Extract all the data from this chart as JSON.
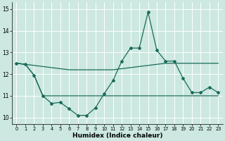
{
  "xlabel": "Humidex (Indice chaleur)",
  "bg_color": "#cce8e0",
  "line_color": "#1a6b5a",
  "grid_color": "#ffffff",
  "xlim": [
    -0.5,
    23.5
  ],
  "ylim": [
    9.7,
    15.3
  ],
  "yticks": [
    10,
    11,
    12,
    13,
    14,
    15
  ],
  "xticks": [
    0,
    1,
    2,
    3,
    4,
    5,
    6,
    7,
    8,
    9,
    10,
    11,
    12,
    13,
    14,
    15,
    16,
    17,
    18,
    19,
    20,
    21,
    22,
    23
  ],
  "line1_x": [
    0,
    1,
    2,
    3,
    4,
    5,
    6,
    7,
    8,
    9,
    10,
    11,
    12,
    13,
    14,
    15,
    16,
    17,
    18,
    19,
    20,
    21,
    22,
    23
  ],
  "line1_y": [
    12.5,
    12.45,
    12.4,
    12.35,
    12.3,
    12.25,
    12.2,
    12.2,
    12.2,
    12.2,
    12.2,
    12.2,
    12.25,
    12.3,
    12.35,
    12.4,
    12.45,
    12.5,
    12.5,
    12.5,
    12.5,
    12.5,
    12.5,
    12.5
  ],
  "line2_x": [
    0,
    1,
    2,
    3,
    4,
    5,
    6,
    7,
    8,
    9,
    10,
    11,
    12,
    13,
    14,
    15,
    16,
    17,
    18,
    19,
    20,
    21,
    22,
    23
  ],
  "line2_y": [
    12.5,
    12.45,
    11.95,
    11.0,
    10.65,
    10.7,
    10.4,
    10.1,
    10.1,
    10.45,
    11.1,
    11.7,
    12.6,
    13.2,
    13.2,
    14.85,
    13.1,
    12.6,
    12.6,
    11.8,
    11.15,
    11.15,
    11.4,
    11.15
  ],
  "line3_x": [
    0,
    1,
    2,
    3,
    4,
    5,
    6,
    7,
    8,
    9,
    10,
    11,
    12,
    13,
    14,
    15,
    16,
    17,
    18,
    19,
    20,
    21,
    22,
    23
  ],
  "line3_y": [
    12.5,
    12.45,
    11.95,
    11.0,
    11.0,
    11.0,
    11.0,
    11.0,
    11.0,
    11.0,
    11.0,
    11.0,
    11.0,
    11.0,
    11.0,
    11.0,
    11.0,
    11.0,
    11.0,
    11.0,
    11.0,
    11.0,
    11.0,
    11.0
  ]
}
